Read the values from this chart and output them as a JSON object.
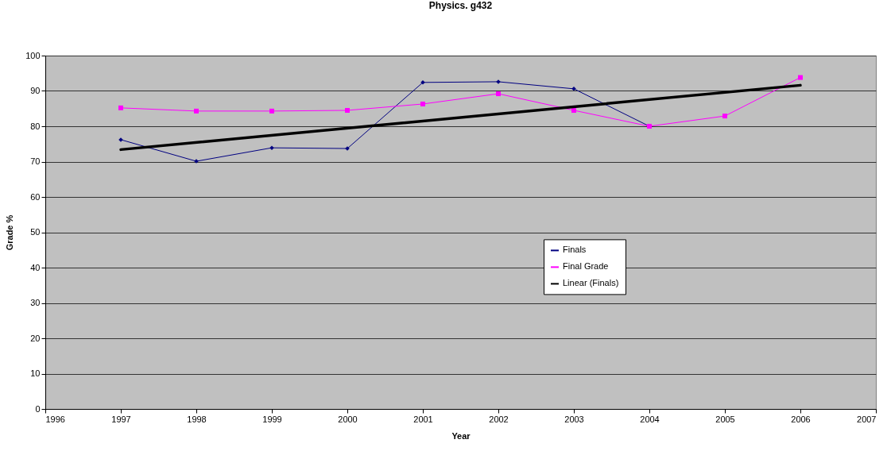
{
  "chart_data": {
    "type": "line",
    "title": "Physics. g432",
    "xlabel": "Year",
    "ylabel": "Grade %",
    "x": [
      1997,
      1998,
      1999,
      2000,
      2001,
      2002,
      2003,
      2004,
      2005,
      2006
    ],
    "series": [
      {
        "name": "Finals",
        "color": "#000080",
        "marker": "diamond",
        "values": [
          76.2,
          70.1,
          73.9,
          73.7,
          92.4,
          92.6,
          90.6,
          80.0,
          null,
          null
        ]
      },
      {
        "name": "Final Grade",
        "color": "#ff00ff",
        "marker": "square",
        "values": [
          85.2,
          84.3,
          84.3,
          84.5,
          86.3,
          89.2,
          84.5,
          80.0,
          82.9,
          93.8
        ]
      },
      {
        "name": "Linear (Finals)",
        "color": "#000000",
        "type": "line",
        "marker": "none",
        "x": [
          1997,
          2006
        ],
        "values": [
          73.4,
          91.6
        ]
      }
    ],
    "xlim": [
      1996,
      2007
    ],
    "xticks": [
      1996,
      1997,
      1998,
      1999,
      2000,
      2001,
      2002,
      2003,
      2004,
      2005,
      2006,
      2007
    ],
    "ylim": [
      0,
      100
    ],
    "yticks": [
      0,
      10,
      20,
      30,
      40,
      50,
      60,
      70,
      80,
      90,
      100
    ],
    "grid": "y",
    "legend": "center"
  }
}
